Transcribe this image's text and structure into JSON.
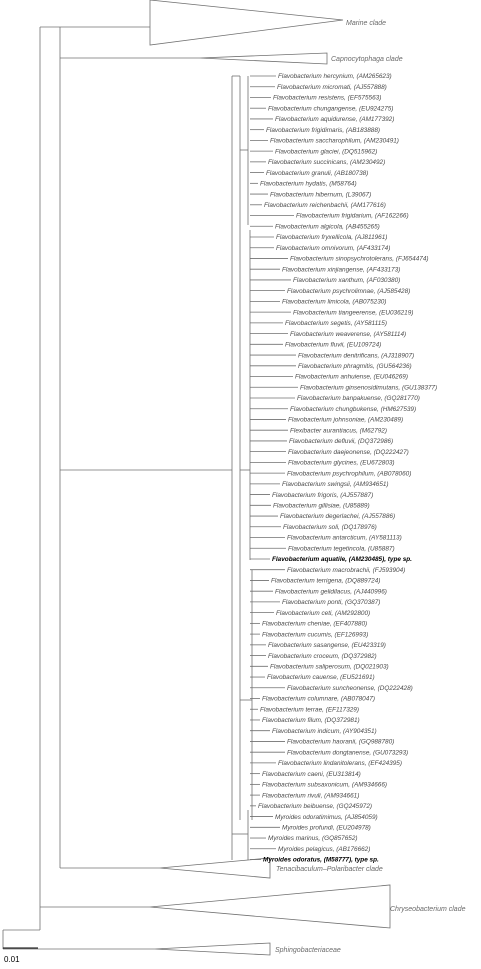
{
  "clades": {
    "marine": "Marine clade",
    "capnocytophaga": "Capnocytophaga clade",
    "tenacibaculum": "Tenacibaculum–Polaribacter clade",
    "chryseobacterium": "Chryseobacterium clade",
    "sphingobacteriaceae": "Sphingobacteriaceae"
  },
  "scale_bar": {
    "label": "0.01"
  },
  "taxa": [
    {
      "name": "Flavobacterium hercynium, (AM265623)",
      "type": false
    },
    {
      "name": "Flavobacterium micromati, (AJ557888)",
      "type": false
    },
    {
      "name": "Flavobacterium resistens, (EF575563)",
      "type": false
    },
    {
      "name": "Flavobacterium chungangense, (EU924275)",
      "type": false
    },
    {
      "name": "Flavobacterium aquidurense, (AM177392)",
      "type": false
    },
    {
      "name": "Flavobacterium frigidimaris, (AB183888)",
      "type": false
    },
    {
      "name": "Flavobacterium saccharophilum, (AM230491)",
      "type": false
    },
    {
      "name": "Flavobacterium glaciei, (DQ515962)",
      "type": false
    },
    {
      "name": "Flavobacterium succinicans, (AM230492)",
      "type": false
    },
    {
      "name": "Flavobacterium granuli, (AB180738)",
      "type": false
    },
    {
      "name": "Flavobacterium hydatis, (M58764)",
      "type": false
    },
    {
      "name": "Flavobacterium hibernum, (L39067)",
      "type": false
    },
    {
      "name": "Flavobacterium reichenbachii, (AM177616)",
      "type": false
    },
    {
      "name": "Flavobacterium frigidarium, (AF162266)",
      "type": false
    },
    {
      "name": "Flavobacterium algicola, (AB455265)",
      "type": false
    },
    {
      "name": "Flavobacterium fryxellicola, (AJ811961)",
      "type": false
    },
    {
      "name": "Flavobacterium omnivorum, (AF433174)",
      "type": false
    },
    {
      "name": "Flavobacterium sinopsychrotolerans, (FJ654474)",
      "type": false
    },
    {
      "name": "Flavobacterium xinjiangense, (AF433173)",
      "type": false
    },
    {
      "name": "Flavobacterium xanthum, (AF030380)",
      "type": false
    },
    {
      "name": "Flavobacterium psychrolimnae, (AJ585428)",
      "type": false
    },
    {
      "name": "Flavobacterium limicola, (AB075230)",
      "type": false
    },
    {
      "name": "Flavobacterium tiangeerense, (EU036219)",
      "type": false
    },
    {
      "name": "Flavobacterium segetis, (AY581115)",
      "type": false
    },
    {
      "name": "Flavobacterium weaverense, (AY581114)",
      "type": false
    },
    {
      "name": "Flavobacterium fluvii, (EU109724)",
      "type": false
    },
    {
      "name": "Flavobacterium denitrificans, (AJ318907)",
      "type": false
    },
    {
      "name": "Flavobacterium phragmitis, (GU564236)",
      "type": false
    },
    {
      "name": "Flavobacterium anhuiense, (EU046269)",
      "type": false
    },
    {
      "name": "Flavobacterium ginsenosidimutans, (GU138377)",
      "type": false
    },
    {
      "name": "Flavobacterium banpakuense, (GQ281770)",
      "type": false
    },
    {
      "name": "Flavobacterium chungbukense, (HM627539)",
      "type": false
    },
    {
      "name": "Flavobacterium johnsoniae, (AM230489)",
      "type": false
    },
    {
      "name": "Flexibacter aurantiacus, (M62792)",
      "type": false
    },
    {
      "name": "Flavobacterium defluvii, (DQ372986)",
      "type": false
    },
    {
      "name": "Flavobacterium daejeonense, (DQ222427)",
      "type": false
    },
    {
      "name": "Flavobacterium glycines, (EU672803)",
      "type": false
    },
    {
      "name": "Flavobacterium psychrophilum, (AB078060)",
      "type": false
    },
    {
      "name": "Flavobacterium swingsii, (AM934651)",
      "type": false
    },
    {
      "name": "Flavobacterium frigoris, (AJ557887)",
      "type": false
    },
    {
      "name": "Flavobacterium gillisiae, (U85889)",
      "type": false
    },
    {
      "name": "Flavobacterium degerlachei, (AJ557886)",
      "type": false
    },
    {
      "name": "Flavobacterium soli, (DQ178976)",
      "type": false
    },
    {
      "name": "Flavobacterium antarcticum, (AY581113)",
      "type": false
    },
    {
      "name": "Flavobacterium tegetincola, (U85887)",
      "type": false
    },
    {
      "name": "Flavobacterium aquatile, (AM230485), type sp.",
      "type": true
    },
    {
      "name": "Flavobacterium macrobrachii, (FJ593904)",
      "type": false
    },
    {
      "name": "Flavobacterium terrigena, (DQ889724)",
      "type": false
    },
    {
      "name": "Flavobacterium gelidilacus, (AJ440996)",
      "type": false
    },
    {
      "name": "Flavobacterium ponti, (GQ370387)",
      "type": false
    },
    {
      "name": "Flavobacterium ceti, (AM292800)",
      "type": false
    },
    {
      "name": "Flavobacterium cheniae, (EF407880)",
      "type": false
    },
    {
      "name": "Flavobacterium cucumis, (EF126993)",
      "type": false
    },
    {
      "name": "Flavobacterium sasangense, (EU423319)",
      "type": false
    },
    {
      "name": "Flavobacterium croceum, (DQ372982)",
      "type": false
    },
    {
      "name": "Flavobacterium saliperosum, (DQ021903)",
      "type": false
    },
    {
      "name": "Flavobacterium cauense, (EU521691)",
      "type": false
    },
    {
      "name": "Flavobacterium suncheonense, (DQ222428)",
      "type": false
    },
    {
      "name": "Flavobacterium columnare, (AB078047)",
      "type": false
    },
    {
      "name": "Flavobacterium terrae, (EF117329)",
      "type": false
    },
    {
      "name": "Flavobacterium filum, (DQ372981)",
      "type": false
    },
    {
      "name": "Flavobacterium indicum, (AY904351)",
      "type": false
    },
    {
      "name": "Flavobacterium haoranii, (GQ988780)",
      "type": false
    },
    {
      "name": "Flavobacterium dongtanense, (GU073293)",
      "type": false
    },
    {
      "name": "Flavobacterium lindanitolerans, (EF424395)",
      "type": false
    },
    {
      "name": "Flavobacterium caeni, (EU313814)",
      "type": false
    },
    {
      "name": "Flavobacterium subsaxonicum, (AM934666)",
      "type": false
    },
    {
      "name": "Flavobacterium rivuli, (AM934661)",
      "type": false
    },
    {
      "name": "Flavobacterium beibuense, (GQ245972)",
      "type": false
    },
    {
      "name": "Myroides odoratimimus, (AJ854059)",
      "type": false
    },
    {
      "name": "Myroides profundi, (EU204978)",
      "type": false
    },
    {
      "name": "Myroides marinus, (GQ857652)",
      "type": false
    },
    {
      "name": "Myroides pelagicus, (AB176662)",
      "type": false
    },
    {
      "name": "Myroides odoratus, (M58777), type sp.",
      "type": true
    }
  ]
}
